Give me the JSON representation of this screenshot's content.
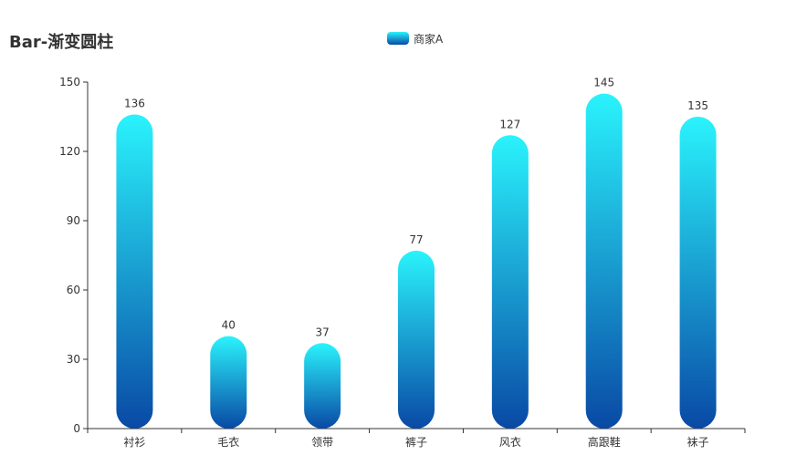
{
  "chart_data": {
    "type": "bar",
    "title": "Bar-渐变圆柱",
    "categories": [
      "衬衫",
      "毛衣",
      "领带",
      "裤子",
      "风衣",
      "高跟鞋",
      "袜子"
    ],
    "series": [
      {
        "name": "商家A",
        "values": [
          136,
          40,
          37,
          77,
          127,
          145,
          135
        ]
      }
    ],
    "xlabel": "",
    "ylabel": "",
    "ylim": [
      0,
      150
    ],
    "yticks": [
      0,
      30,
      60,
      90,
      120,
      150
    ],
    "legend_position": "top-center",
    "grid": false,
    "data_labels": true,
    "bar_style": "rounded gradient",
    "colors": {
      "gradient_top": "#2af3fc",
      "gradient_bottom": "#0949a5",
      "axis": "#333333",
      "text": "#333333"
    }
  }
}
